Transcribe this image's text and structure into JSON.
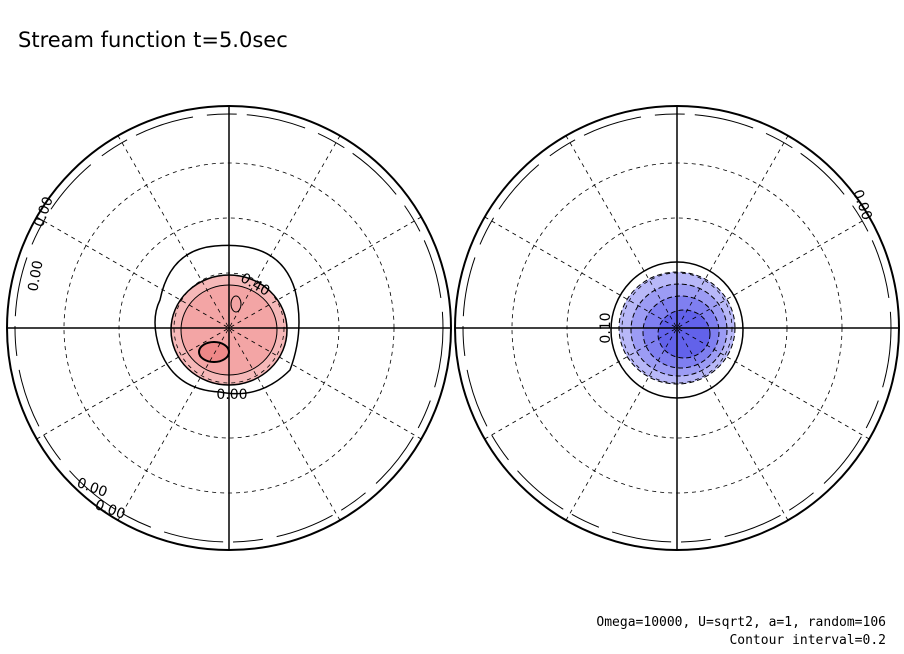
{
  "title": "Stream function t=5.0sec",
  "footer": [
    "Omega=10000, U=sqrt2, a=1, random=106",
    "Contour interval=0.2"
  ],
  "panels": [
    {
      "labels": [
        "0.00",
        "0.00",
        "0.40",
        "0.00",
        "0.00",
        "0.00"
      ]
    },
    {
      "labels": [
        "0.10",
        "0.00"
      ]
    }
  ]
}
